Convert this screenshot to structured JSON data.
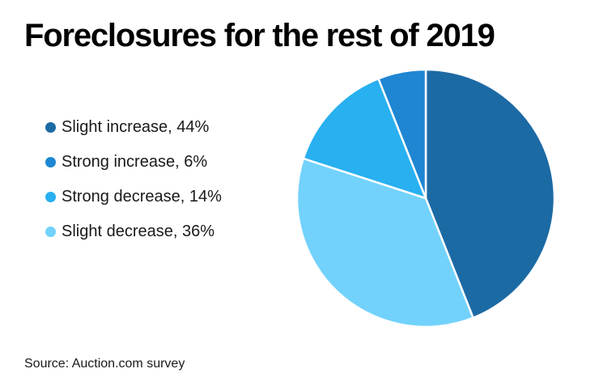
{
  "page": {
    "background_color": "#ffffff"
  },
  "chart_data": {
    "type": "pie",
    "title": "Foreclosures for the rest of 2019",
    "categories": [
      "Slight increase",
      "Strong increase",
      "Strong decrease",
      "Slight decrease"
    ],
    "values": [
      44,
      6,
      14,
      36
    ],
    "unit": "%",
    "legend_position": "left",
    "legend": [
      {
        "label": "Slight increase",
        "value": 44,
        "display": "Slight increase, 44%",
        "color": "#1c6aa4"
      },
      {
        "label": "Strong increase",
        "value": 6,
        "display": "Strong increase, 6%",
        "color": "#1e86d3"
      },
      {
        "label": "Strong decrease",
        "value": 14,
        "display": "Strong decrease, 14%",
        "color": "#28b0f0"
      },
      {
        "label": "Slight decrease",
        "value": 36,
        "display": "Slight decrease, 36%",
        "color": "#72d2fb"
      }
    ],
    "slices_clockwise": [
      {
        "label": "Slight increase",
        "value": 44,
        "color": "#1c6aa4"
      },
      {
        "label": "Slight decrease",
        "value": 36,
        "color": "#72d2fb"
      },
      {
        "label": "Strong decrease",
        "value": 14,
        "color": "#28b0f0"
      },
      {
        "label": "Strong increase",
        "value": 6,
        "color": "#1e86d3"
      }
    ],
    "start_angle_deg": 0,
    "direction": "clockwise",
    "slice_divider_color": "#ffffff",
    "slice_divider_width": 2.5
  },
  "footer": {
    "source": "Source: Auction.com survey"
  }
}
